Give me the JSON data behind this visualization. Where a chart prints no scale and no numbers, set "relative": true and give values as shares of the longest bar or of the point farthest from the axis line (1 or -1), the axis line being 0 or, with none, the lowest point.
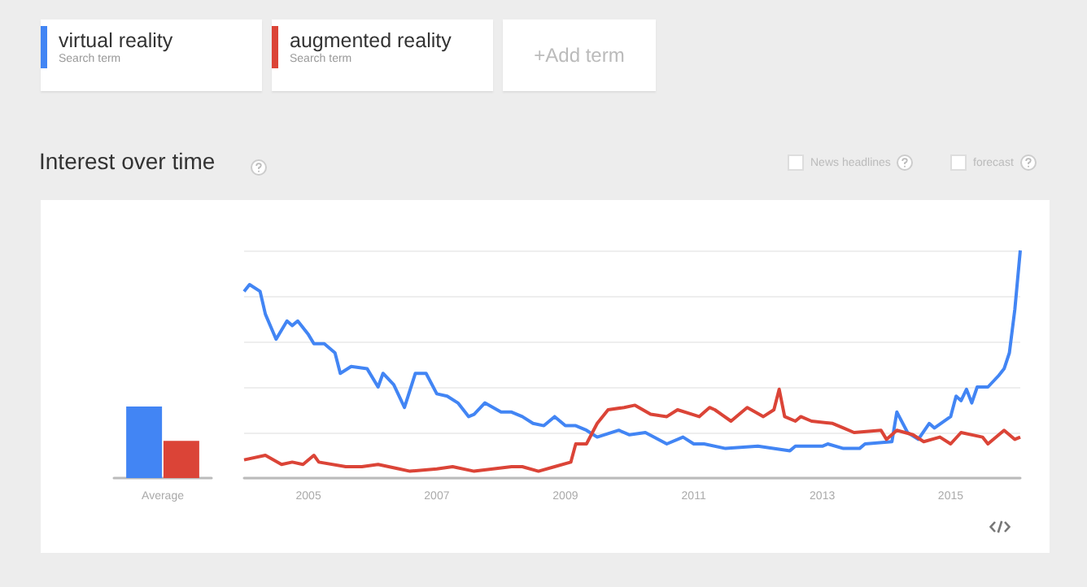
{
  "chart_data": [
    {
      "type": "bar",
      "categories": [
        "Average"
      ],
      "relative": true,
      "tick_labels": "x",
      "legend": "top right",
      "annotations": [
        "Search term",
        "Search term",
        "+Add term",
        "News headlines",
        "forecast"
      ],
      "series": [
        {
          "name": "virtual reality",
          "color": "#4285f4",
          "values": [
            1
          ]
        },
        {
          "name": "augmented reality",
          "color": "#db4437",
          "values": [
            0.52
          ]
        }
      ]
    },
    {
      "type": "line",
      "title": "Interest over time",
      "relative": true,
      "grid": "y",
      "marker": "none",
      "tick_labels": "x",
      "xlim": [
        "2004-01",
        "2016-02"
      ],
      "xticks": [
        "2005",
        "2007",
        "2009",
        "2011",
        "2013",
        "2015"
      ],
      "series": [
        {
          "color": "#4285f4",
          "x": [
            "2004-01",
            "2004-02",
            "2004-04",
            "2004-05",
            "2004-07",
            "2004-09",
            "2004-10",
            "2004-11",
            "2005-01",
            "2005-02",
            "2005-04",
            "2005-06",
            "2005-07",
            "2005-09",
            "2005-12",
            "2006-02",
            "2006-03",
            "2006-05",
            "2006-07",
            "2006-09",
            "2006-11",
            "2007-01",
            "2007-03",
            "2007-05",
            "2007-07",
            "2007-08",
            "2007-10",
            "2008-01",
            "2008-03",
            "2008-05",
            "2008-07",
            "2008-09",
            "2008-11",
            "2009-01",
            "2009-03",
            "2009-05",
            "2009-07",
            "2009-11",
            "2010-01",
            "2010-04",
            "2010-08",
            "2010-11",
            "2011-01",
            "2011-03",
            "2011-07",
            "2012-01",
            "2012-07",
            "2012-08",
            "2013-01",
            "2013-02",
            "2013-05",
            "2013-08",
            "2013-09",
            "2014-02",
            "2014-03",
            "2014-05",
            "2014-07",
            "2014-09",
            "2014-10",
            "2015-01",
            "2015-02",
            "2015-03",
            "2015-04",
            "2015-05",
            "2015-06",
            "2015-08",
            "2015-10",
            "2015-11",
            "2015-12",
            "2016-01",
            "2016-02"
          ],
          "values": [
            0.82,
            0.85,
            0.82,
            0.72,
            0.61,
            0.69,
            0.67,
            0.69,
            0.63,
            0.59,
            0.59,
            0.55,
            0.46,
            0.49,
            0.48,
            0.4,
            0.46,
            0.41,
            0.31,
            0.46,
            0.46,
            0.37,
            0.36,
            0.33,
            0.27,
            0.28,
            0.33,
            0.29,
            0.29,
            0.27,
            0.24,
            0.23,
            0.27,
            0.23,
            0.23,
            0.21,
            0.18,
            0.21,
            0.19,
            0.2,
            0.15,
            0.18,
            0.15,
            0.15,
            0.13,
            0.14,
            0.12,
            0.14,
            0.14,
            0.15,
            0.13,
            0.13,
            0.15,
            0.16,
            0.29,
            0.2,
            0.17,
            0.24,
            0.22,
            0.27,
            0.36,
            0.34,
            0.39,
            0.33,
            0.4,
            0.4,
            0.45,
            0.48,
            0.55,
            0.74,
            1
          ]
        },
        {
          "color": "#db4437",
          "x": [
            "2004-01",
            "2004-05",
            "2004-08",
            "2004-10",
            "2004-12",
            "2005-02",
            "2005-03",
            "2005-08",
            "2005-11",
            "2006-02",
            "2006-06",
            "2006-08",
            "2007-01",
            "2007-04",
            "2007-08",
            "2008-03",
            "2008-05",
            "2008-08",
            "2008-11",
            "2009-02",
            "2009-03",
            "2009-05",
            "2009-07",
            "2009-09",
            "2009-12",
            "2010-02",
            "2010-05",
            "2010-08",
            "2010-10",
            "2011-02",
            "2011-04",
            "2011-05",
            "2011-08",
            "2011-11",
            "2012-02",
            "2012-04",
            "2012-05",
            "2012-06",
            "2012-08",
            "2012-09",
            "2012-11",
            "2013-03",
            "2013-05",
            "2013-07",
            "2013-12",
            "2014-01",
            "2014-03",
            "2014-06",
            "2014-08",
            "2014-11",
            "2015-01",
            "2015-03",
            "2015-07",
            "2015-08",
            "2015-11",
            "2016-01",
            "2016-02"
          ],
          "values": [
            0.08,
            0.1,
            0.06,
            0.07,
            0.06,
            0.1,
            0.07,
            0.05,
            0.05,
            0.06,
            0.04,
            0.03,
            0.04,
            0.05,
            0.03,
            0.05,
            0.05,
            0.03,
            0.05,
            0.07,
            0.15,
            0.15,
            0.24,
            0.3,
            0.31,
            0.32,
            0.28,
            0.27,
            0.3,
            0.27,
            0.31,
            0.3,
            0.25,
            0.31,
            0.27,
            0.3,
            0.39,
            0.27,
            0.25,
            0.27,
            0.25,
            0.24,
            0.22,
            0.2,
            0.21,
            0.17,
            0.21,
            0.19,
            0.16,
            0.18,
            0.15,
            0.2,
            0.18,
            0.15,
            0.21,
            0.17,
            0.18
          ]
        }
      ]
    }
  ]
}
